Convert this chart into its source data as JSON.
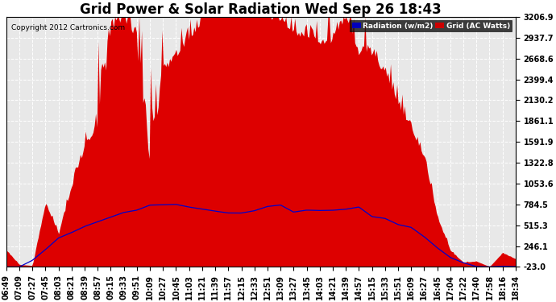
{
  "title": "Grid Power & Solar Radiation Wed Sep 26 18:43",
  "copyright": "Copyright 2012 Cartronics.com",
  "legend_labels": [
    "Radiation (w/m2)",
    "Grid (AC Watts)"
  ],
  "legend_colors": [
    "#0000bb",
    "#cc0000"
  ],
  "yticks": [
    -23.0,
    246.1,
    515.3,
    784.5,
    1053.6,
    1322.8,
    1591.9,
    1861.1,
    2130.2,
    2399.4,
    2668.6,
    2937.7,
    3206.9
  ],
  "ylim": [
    -23.0,
    3206.9
  ],
  "background_color": "#ffffff",
  "grid_color": "#ffffff",
  "solar_fill_color": "#dd0000",
  "radiation_line_color": "#0000cc",
  "title_fontsize": 12,
  "tick_fontsize": 7,
  "x_labels": [
    "06:49",
    "07:09",
    "07:27",
    "07:45",
    "08:03",
    "08:21",
    "08:39",
    "08:57",
    "09:15",
    "09:33",
    "09:51",
    "10:09",
    "10:27",
    "10:45",
    "11:03",
    "11:21",
    "11:39",
    "11:57",
    "12:15",
    "12:33",
    "12:51",
    "13:09",
    "13:27",
    "13:45",
    "14:03",
    "14:21",
    "14:39",
    "14:57",
    "15:15",
    "15:33",
    "15:51",
    "16:09",
    "16:27",
    "16:45",
    "17:04",
    "17:22",
    "17:40",
    "17:58",
    "18:16",
    "18:34"
  ]
}
